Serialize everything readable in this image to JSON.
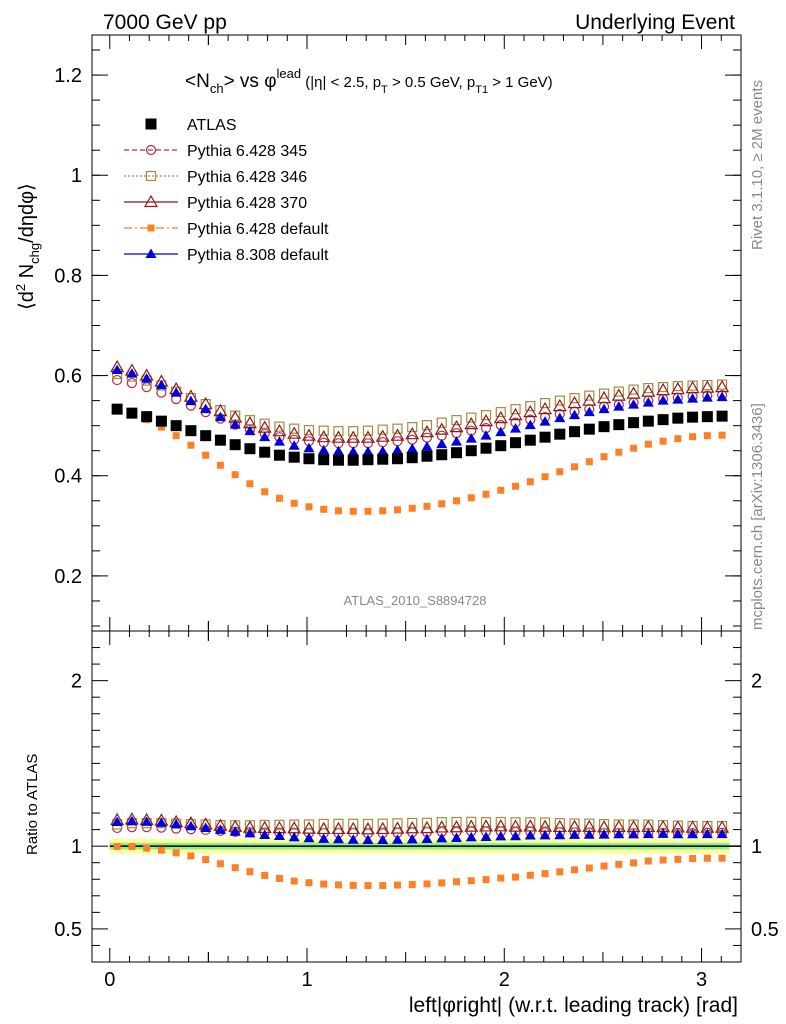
{
  "header": {
    "left": "7000 GeV pp",
    "right": "Underlying Event"
  },
  "side_labels": {
    "rivet": "Rivet 3.1.10, ≥ 2M events",
    "mcplots": "mcplots.cern.ch [arXiv:1306.3436]"
  },
  "watermark": "ATLAS_2010_S8894728",
  "plot_title": {
    "main": "<N_ch> vs φ^lead",
    "cuts": "(|η| < 2.5, p_T > 0.5 GeV, p_T1 > 1 GeV)"
  },
  "colors": {
    "atlas": "#000000",
    "p345": "#b22f3a",
    "p346": "#a68a3c",
    "p370": "#8b1a1a",
    "p6def": "#ff7f27",
    "p8": "#0000dd",
    "band_green": "#90ee90",
    "band_yellow": "#ffff99"
  },
  "chart_data": [
    {
      "type": "scatter",
      "ylabel": "⟨d² N_chg/dηdφ⟩",
      "ylim": [
        0.09,
        1.28
      ],
      "xlim": [
        -0.09,
        3.2
      ],
      "yticks": [
        "0.2",
        "0.4",
        "0.6",
        "0.8",
        "1",
        "1.2"
      ],
      "legend_position": "top-left",
      "series": [
        {
          "name": "ATLAS",
          "key": "atlas",
          "marker": "square-filled",
          "values": [
            0.533,
            0.525,
            0.518,
            0.509,
            0.5,
            0.49,
            0.48,
            0.471,
            0.462,
            0.454,
            0.447,
            0.441,
            0.437,
            0.434,
            0.432,
            0.431,
            0.431,
            0.432,
            0.433,
            0.434,
            0.436,
            0.439,
            0.442,
            0.446,
            0.45,
            0.455,
            0.46,
            0.466,
            0.471,
            0.477,
            0.483,
            0.488,
            0.493,
            0.498,
            0.502,
            0.506,
            0.509,
            0.512,
            0.515,
            0.517,
            0.518,
            0.519
          ]
        },
        {
          "name": "Pythia 6.428 345",
          "key": "p345",
          "marker": "circle-open",
          "values": [
            0.591,
            0.585,
            0.577,
            0.566,
            0.553,
            0.54,
            0.527,
            0.514,
            0.502,
            0.492,
            0.484,
            0.477,
            0.472,
            0.469,
            0.466,
            0.465,
            0.465,
            0.465,
            0.467,
            0.469,
            0.472,
            0.476,
            0.48,
            0.485,
            0.49,
            0.495,
            0.501,
            0.506,
            0.512,
            0.517,
            0.523,
            0.528,
            0.533,
            0.538,
            0.542,
            0.546,
            0.55,
            0.553,
            0.556,
            0.558,
            0.56,
            0.561
          ]
        },
        {
          "name": "Pythia 6.428 346",
          "key": "p346",
          "marker": "square-open",
          "values": [
            0.603,
            0.598,
            0.59,
            0.58,
            0.568,
            0.555,
            0.543,
            0.531,
            0.52,
            0.511,
            0.504,
            0.498,
            0.494,
            0.491,
            0.49,
            0.489,
            0.489,
            0.49,
            0.492,
            0.494,
            0.497,
            0.501,
            0.506,
            0.511,
            0.516,
            0.521,
            0.527,
            0.533,
            0.539,
            0.545,
            0.55,
            0.555,
            0.56,
            0.564,
            0.568,
            0.572,
            0.575,
            0.577,
            0.579,
            0.58,
            0.581,
            0.582
          ]
        },
        {
          "name": "Pythia 6.428 370",
          "key": "p370",
          "marker": "triangle-open",
          "values": [
            0.617,
            0.61,
            0.6,
            0.588,
            0.573,
            0.558,
            0.543,
            0.529,
            0.516,
            0.505,
            0.496,
            0.489,
            0.484,
            0.48,
            0.477,
            0.476,
            0.476,
            0.476,
            0.478,
            0.48,
            0.483,
            0.487,
            0.492,
            0.497,
            0.503,
            0.509,
            0.515,
            0.521,
            0.527,
            0.533,
            0.539,
            0.545,
            0.55,
            0.555,
            0.56,
            0.564,
            0.568,
            0.571,
            0.573,
            0.575,
            0.576,
            0.577
          ]
        },
        {
          "name": "Pythia 6.428 default",
          "key": "p6def",
          "marker": "square-filled-small",
          "values": [
            0.532,
            0.524,
            0.512,
            0.497,
            0.48,
            0.461,
            0.441,
            0.421,
            0.402,
            0.384,
            0.368,
            0.355,
            0.345,
            0.338,
            0.333,
            0.33,
            0.329,
            0.329,
            0.33,
            0.332,
            0.335,
            0.339,
            0.344,
            0.35,
            0.356,
            0.363,
            0.371,
            0.379,
            0.388,
            0.398,
            0.408,
            0.418,
            0.428,
            0.438,
            0.447,
            0.455,
            0.463,
            0.469,
            0.474,
            0.478,
            0.48,
            0.481
          ]
        },
        {
          "name": "Pythia 8.308 default",
          "key": "p8",
          "marker": "triangle-filled",
          "values": [
            0.611,
            0.604,
            0.594,
            0.581,
            0.566,
            0.549,
            0.533,
            0.517,
            0.502,
            0.489,
            0.477,
            0.468,
            0.46,
            0.455,
            0.451,
            0.449,
            0.448,
            0.448,
            0.449,
            0.451,
            0.454,
            0.458,
            0.463,
            0.468,
            0.474,
            0.48,
            0.487,
            0.494,
            0.501,
            0.508,
            0.515,
            0.521,
            0.527,
            0.533,
            0.538,
            0.542,
            0.546,
            0.55,
            0.552,
            0.554,
            0.556,
            0.557
          ]
        }
      ]
    },
    {
      "type": "scatter",
      "ylabel": "Ratio to ATLAS",
      "xlabel": "left|φright| (w.r.t. leading track) [rad]",
      "ylim": [
        0.3,
        2.3
      ],
      "xlim": [
        -0.09,
        3.2
      ],
      "xticks": [
        "0",
        "1",
        "2",
        "3"
      ],
      "yticks": [
        "0.5",
        "1",
        "2"
      ],
      "reference_line": 1,
      "series": [
        {
          "key": "p345",
          "marker": "circle-open",
          "values": [
            1.11,
            1.114,
            1.115,
            1.112,
            1.106,
            1.102,
            1.098,
            1.092,
            1.087,
            1.084,
            1.083,
            1.082,
            1.081,
            1.08,
            1.079,
            1.079,
            1.079,
            1.077,
            1.078,
            1.081,
            1.083,
            1.085,
            1.086,
            1.087,
            1.089,
            1.088,
            1.089,
            1.086,
            1.087,
            1.084,
            1.083,
            1.082,
            1.081,
            1.08,
            1.08,
            1.079,
            1.081,
            1.08,
            1.08,
            1.079,
            1.081,
            1.081
          ]
        },
        {
          "key": "p346",
          "marker": "square-open",
          "values": [
            1.131,
            1.139,
            1.139,
            1.139,
            1.136,
            1.133,
            1.131,
            1.127,
            1.126,
            1.126,
            1.128,
            1.129,
            1.13,
            1.131,
            1.134,
            1.135,
            1.135,
            1.134,
            1.136,
            1.138,
            1.14,
            1.141,
            1.145,
            1.146,
            1.147,
            1.145,
            1.146,
            1.144,
            1.144,
            1.143,
            1.139,
            1.137,
            1.136,
            1.133,
            1.131,
            1.13,
            1.13,
            1.127,
            1.124,
            1.122,
            1.122,
            1.121
          ]
        },
        {
          "key": "p370",
          "marker": "triangle-open",
          "values": [
            1.158,
            1.162,
            1.158,
            1.155,
            1.146,
            1.139,
            1.131,
            1.123,
            1.117,
            1.112,
            1.11,
            1.109,
            1.108,
            1.106,
            1.104,
            1.104,
            1.104,
            1.102,
            1.104,
            1.106,
            1.108,
            1.109,
            1.113,
            1.114,
            1.118,
            1.119,
            1.12,
            1.118,
            1.119,
            1.117,
            1.116,
            1.117,
            1.116,
            1.114,
            1.116,
            1.115,
            1.116,
            1.115,
            1.113,
            1.112,
            1.112,
            1.112
          ]
        },
        {
          "key": "p6def",
          "marker": "square-filled-small",
          "values": [
            0.998,
            0.998,
            0.988,
            0.976,
            0.96,
            0.941,
            0.919,
            0.894,
            0.87,
            0.846,
            0.823,
            0.805,
            0.789,
            0.779,
            0.771,
            0.766,
            0.763,
            0.762,
            0.762,
            0.765,
            0.768,
            0.772,
            0.778,
            0.785,
            0.791,
            0.798,
            0.807,
            0.813,
            0.824,
            0.834,
            0.845,
            0.857,
            0.868,
            0.88,
            0.89,
            0.899,
            0.91,
            0.916,
            0.92,
            0.925,
            0.927,
            0.927
          ]
        },
        {
          "key": "p8",
          "marker": "triangle-filled",
          "values": [
            1.146,
            1.15,
            1.147,
            1.141,
            1.132,
            1.12,
            1.11,
            1.098,
            1.087,
            1.077,
            1.067,
            1.061,
            1.053,
            1.048,
            1.044,
            1.042,
            1.039,
            1.037,
            1.037,
            1.039,
            1.041,
            1.043,
            1.047,
            1.049,
            1.053,
            1.055,
            1.059,
            1.06,
            1.064,
            1.065,
            1.066,
            1.068,
            1.069,
            1.07,
            1.072,
            1.071,
            1.073,
            1.074,
            1.072,
            1.072,
            1.073,
            1.073
          ]
        }
      ],
      "band": {
        "green_halfwidth": 0.02,
        "yellow_halfwidth": 0.045
      }
    }
  ]
}
